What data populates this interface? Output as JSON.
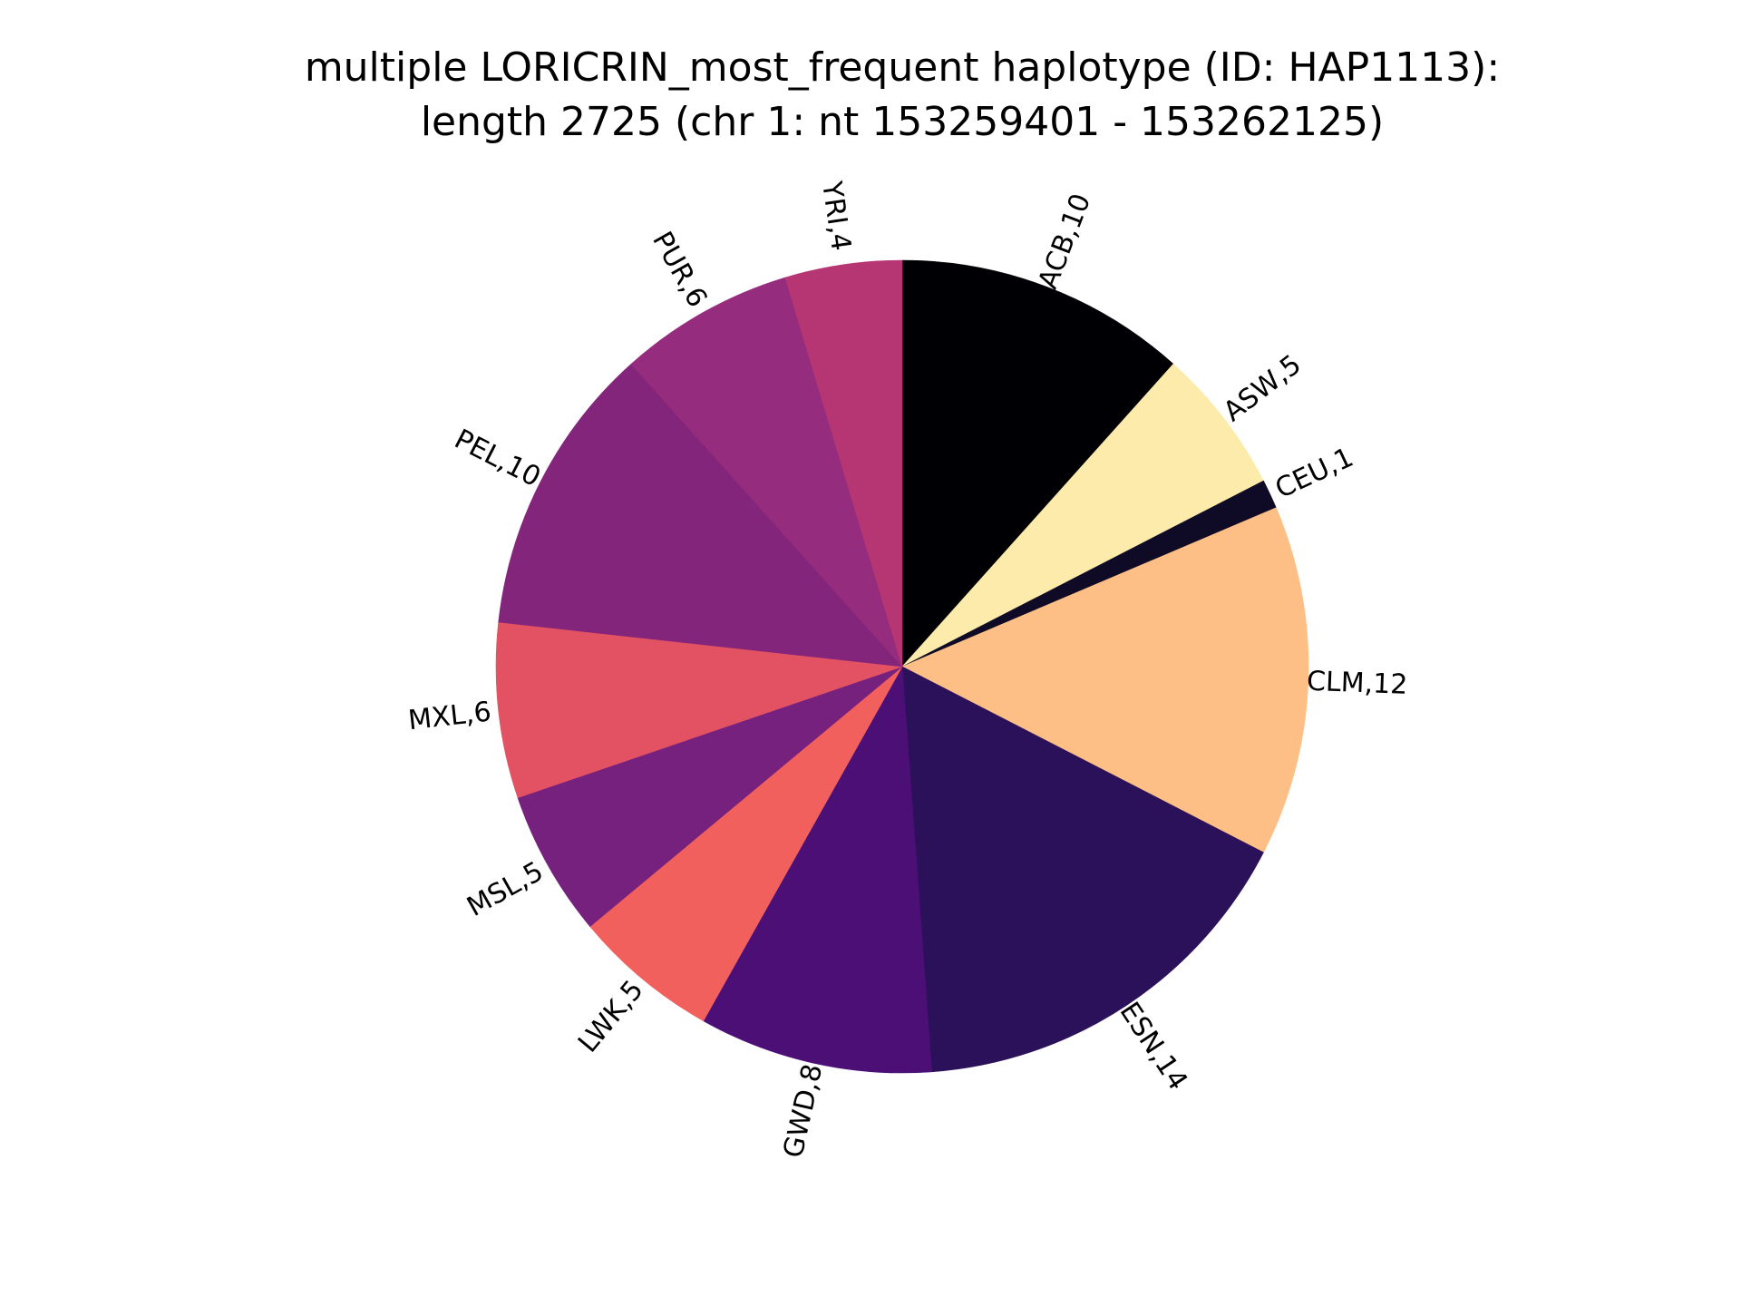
{
  "chart_data": {
    "type": "pie",
    "title": {
      "line1": "multiple LORICRIN_most_frequent haplotype (ID: HAP1113):",
      "line2": "length 2725 (chr 1: nt 153259401 - 153262125)"
    },
    "slices": [
      {
        "label": "ACB,10",
        "value": 10,
        "color": "#000004"
      },
      {
        "label": "ASW,5",
        "value": 5,
        "color": "#fcebaa"
      },
      {
        "label": "CEU,1",
        "value": 1,
        "color": "#0f0a25"
      },
      {
        "label": "CLM,12",
        "value": 12,
        "color": "#fdbf85"
      },
      {
        "label": "ESN,14",
        "value": 14,
        "color": "#2a115a"
      },
      {
        "label": "GWD,8",
        "value": 8,
        "color": "#4b0f76"
      },
      {
        "label": "LWK,5",
        "value": 5,
        "color": "#f1605d"
      },
      {
        "label": "MSL,5",
        "value": 5,
        "color": "#76217d"
      },
      {
        "label": "MXL,6",
        "value": 6,
        "color": "#e35262"
      },
      {
        "label": "PEL,10",
        "value": 10,
        "color": "#84257c"
      },
      {
        "label": "PUR,6",
        "value": 6,
        "color": "#962c7d"
      },
      {
        "label": "YRI,4",
        "value": 4,
        "color": "#b63674"
      }
    ],
    "start_angle_deg": 90,
    "direction": "clockwise",
    "legend": "none"
  }
}
